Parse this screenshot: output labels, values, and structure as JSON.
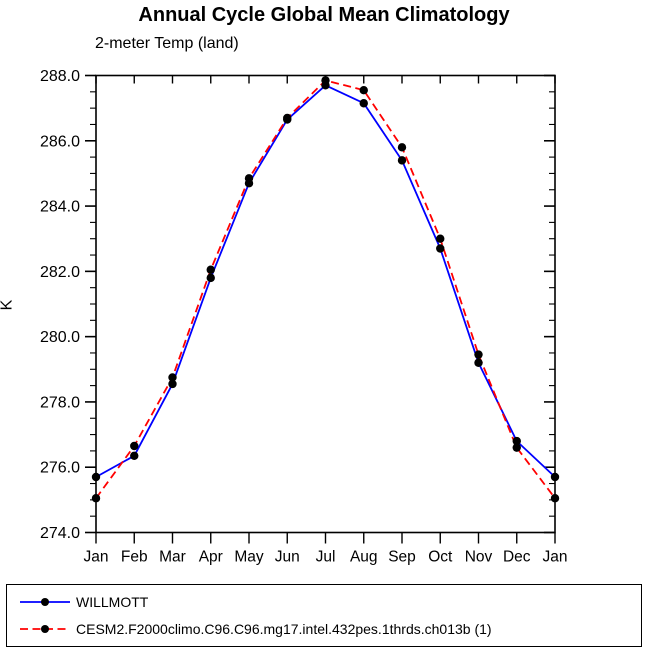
{
  "title": "Annual Cycle Global Mean Climatology",
  "subtitle": "2-meter Temp (land)",
  "colors": {
    "willmott_line": "#0000ff",
    "cesm2_line": "#ff0000",
    "marker": "#000000",
    "axis": "#000000",
    "background": "#ffffff"
  },
  "chart_data": {
    "type": "line",
    "title": "Annual Cycle Global Mean Climatology",
    "subtitle": "2-meter Temp (land)",
    "xlabel": "",
    "ylabel": "K",
    "categories": [
      "Jan",
      "Feb",
      "Mar",
      "Apr",
      "May",
      "Jun",
      "Jul",
      "Aug",
      "Sep",
      "Oct",
      "Nov",
      "Dec",
      "Jan"
    ],
    "ylim": [
      274.0,
      288.0
    ],
    "ytick_interval": 2.0,
    "ytick_minor_interval": 0.5,
    "ytick_labels": [
      "274.0",
      "276.0",
      "278.0",
      "280.0",
      "282.0",
      "284.0",
      "286.0",
      "288.0"
    ],
    "grid": false,
    "legend_position": "bottom-outside-boxed",
    "marker": "filled-circle",
    "series": [
      {
        "name": "WILLMOTT",
        "color": "#0000ff",
        "line_style": "solid",
        "values": [
          275.7,
          276.35,
          278.55,
          281.8,
          284.7,
          286.65,
          287.7,
          287.15,
          285.4,
          282.7,
          279.2,
          276.8,
          275.7
        ]
      },
      {
        "name": "CESM2.F2000climo.C96.C96.mg17.intel.432pes.1thrds.ch013b (1)",
        "color": "#ff0000",
        "line_style": "dashed",
        "values": [
          275.05,
          276.65,
          278.75,
          282.05,
          284.85,
          286.7,
          287.85,
          287.55,
          285.8,
          283.0,
          279.45,
          276.6,
          275.05
        ]
      }
    ]
  }
}
